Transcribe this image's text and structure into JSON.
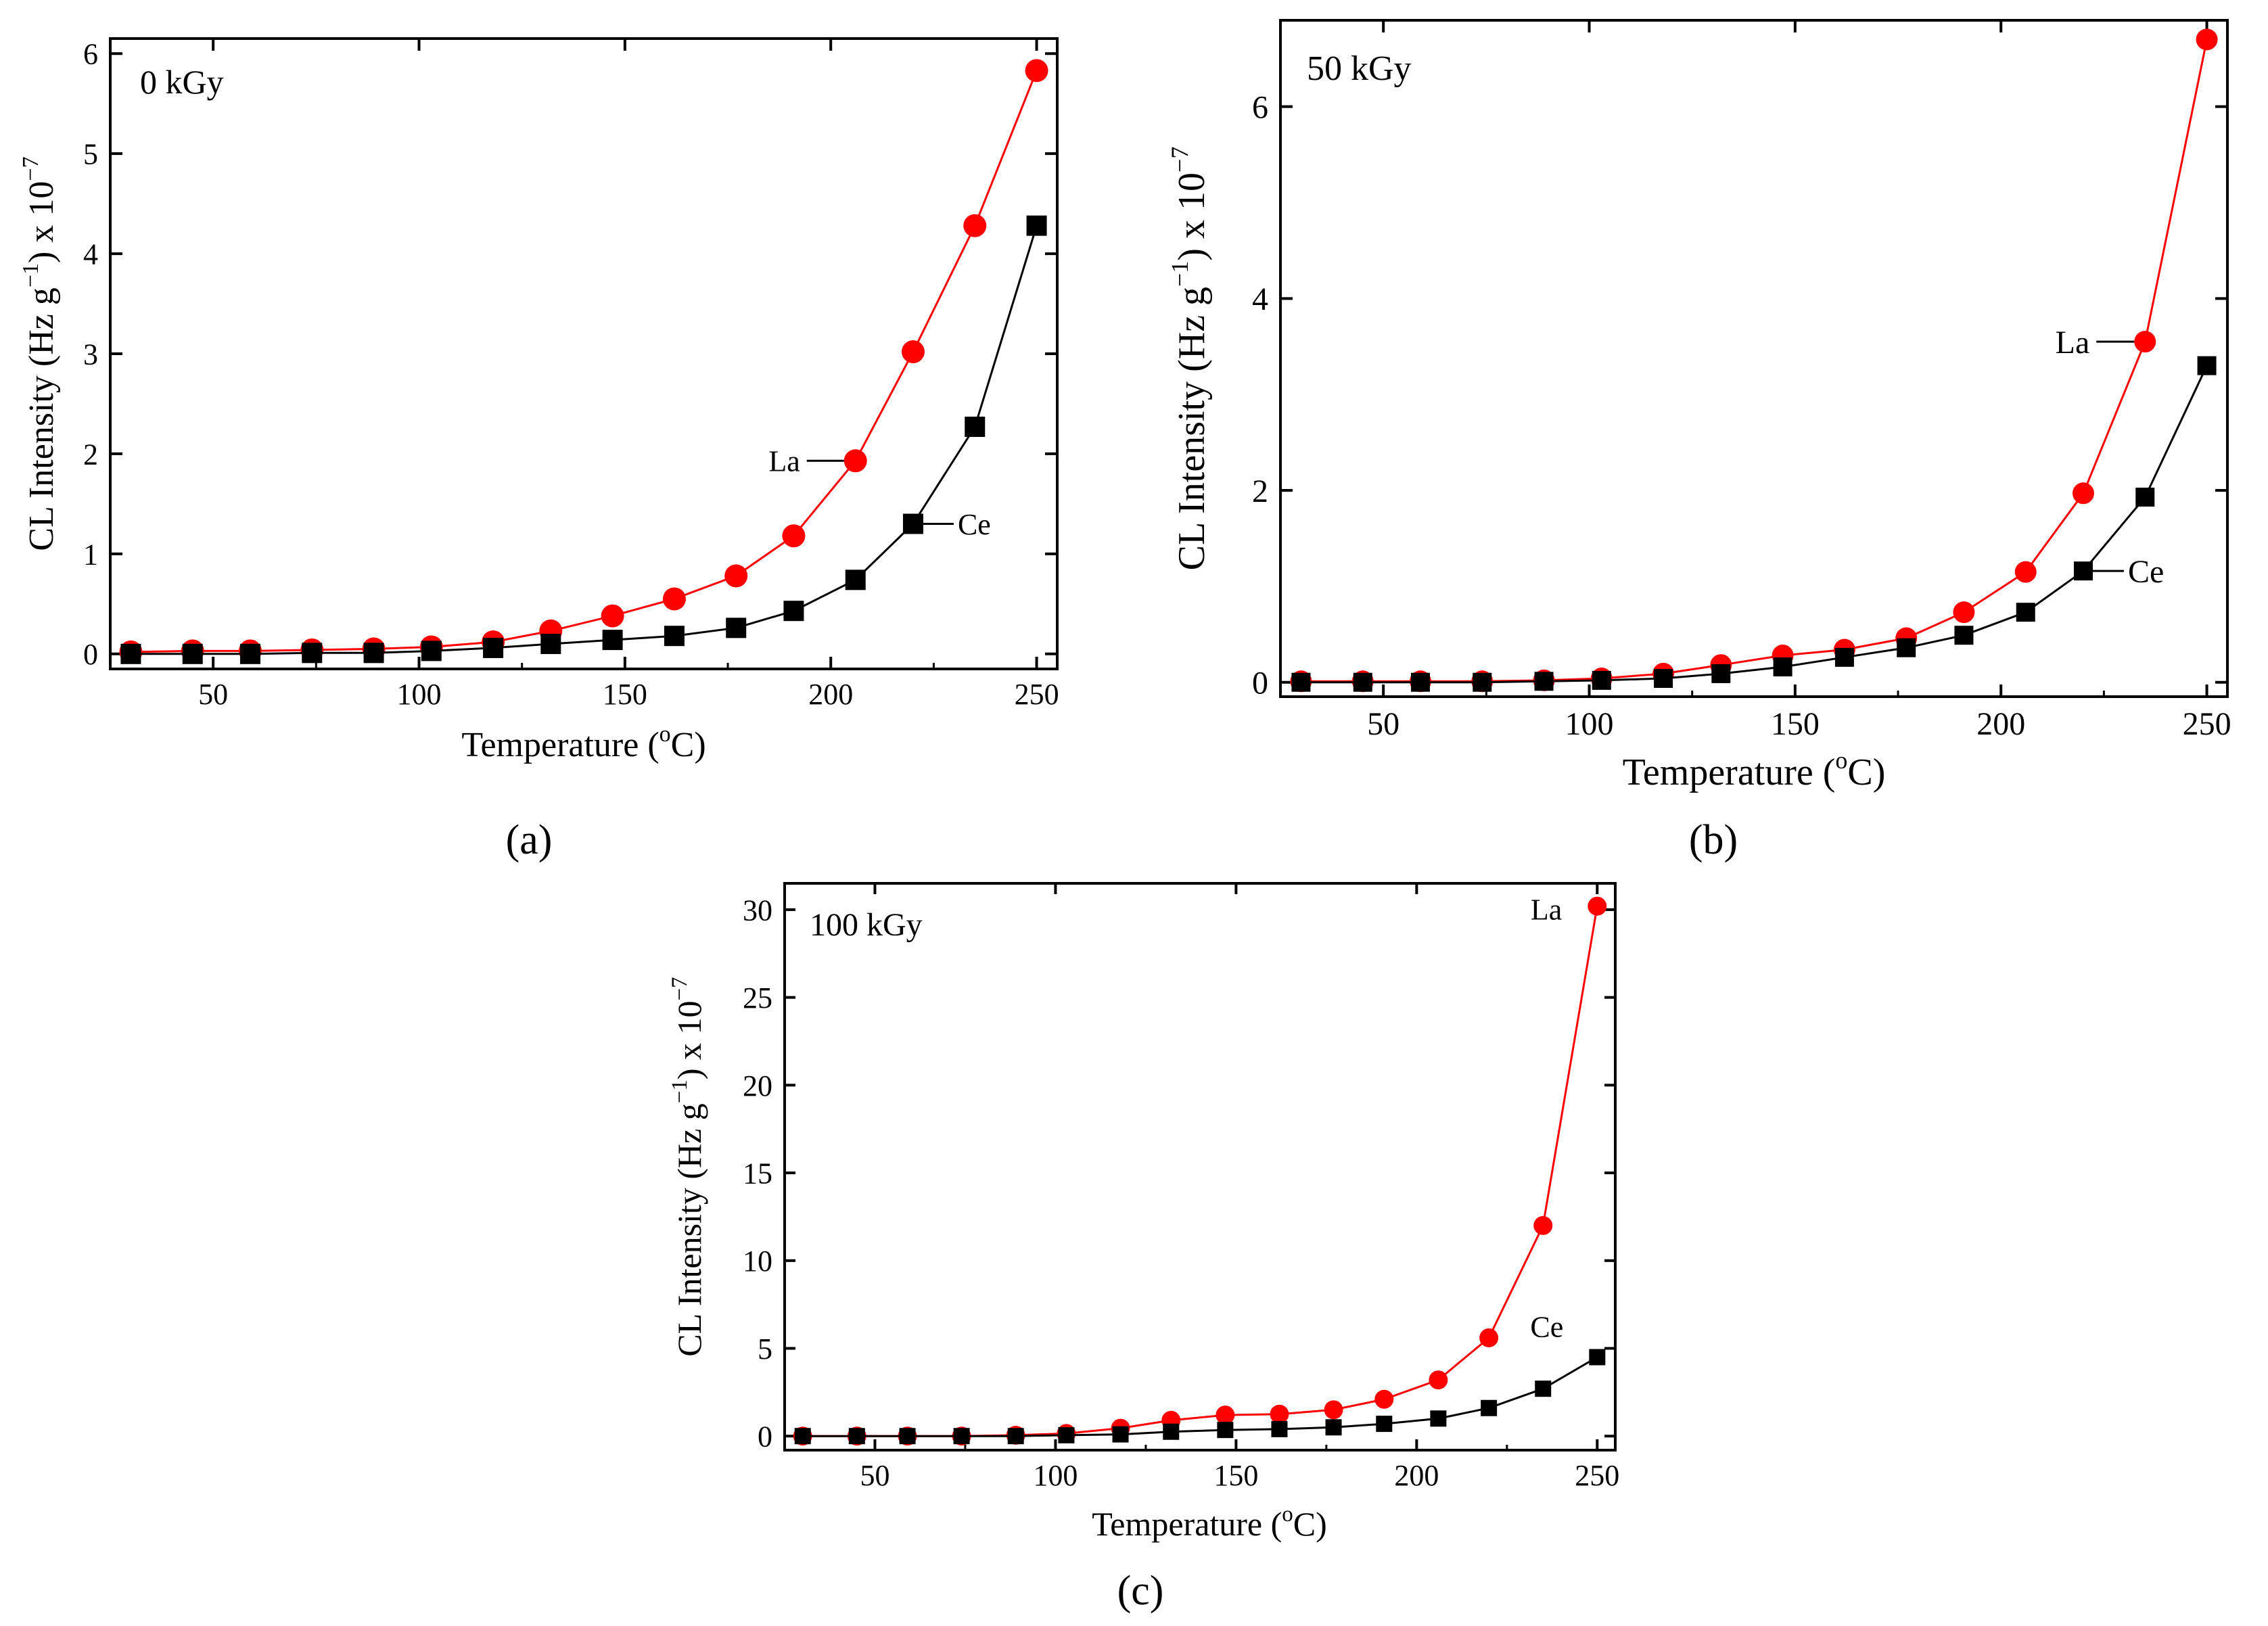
{
  "colors": {
    "la": "#ff0000",
    "ce": "#000000",
    "axis": "#000000"
  },
  "chart_data": [
    {
      "type": "line",
      "panel": "a",
      "panel_label": "(a)",
      "annotation": "0 kGy",
      "xlabel": "Temperature (",
      "xlabel_sup": "o",
      "xlabel_tail": "C)",
      "ylabel_main": "CL Intensity (Hz g",
      "ylabel_sup1": "−1",
      "ylabel_mid": ") x 10",
      "ylabel_sup2": "−7",
      "xlim": [
        25,
        255
      ],
      "ylim": [
        -0.15,
        6.15
      ],
      "xticks": [
        50,
        100,
        150,
        200,
        250
      ],
      "yticks": [
        0,
        1,
        2,
        3,
        4,
        5,
        6
      ],
      "x": [
        30,
        45,
        59,
        74,
        89,
        103,
        118,
        132,
        147,
        162,
        177,
        191,
        206,
        220,
        235,
        250
      ],
      "series": [
        {
          "name": "La",
          "marker": "circle",
          "color": "#ff0000",
          "values": [
            0.02,
            0.03,
            0.03,
            0.04,
            0.05,
            0.07,
            0.12,
            0.23,
            0.38,
            0.55,
            0.78,
            1.18,
            1.93,
            3.02,
            4.28,
            5.83
          ],
          "label_point": 12
        },
        {
          "name": "Ce",
          "marker": "square",
          "color": "#000000",
          "values": [
            0.0,
            0.0,
            0.0,
            0.01,
            0.01,
            0.03,
            0.06,
            0.1,
            0.14,
            0.18,
            0.26,
            0.43,
            0.74,
            1.3,
            2.27,
            4.28
          ],
          "label_point": 13
        }
      ]
    },
    {
      "type": "line",
      "panel": "b",
      "panel_label": "(b)",
      "annotation": "50 kGy",
      "xlabel": "Temperature (",
      "xlabel_sup": "o",
      "xlabel_tail": "C)",
      "ylabel_main": "CL Intensity (Hz g",
      "ylabel_sup1": "−1",
      "ylabel_mid": ") x 10",
      "ylabel_sup2": "−7",
      "xlim": [
        25,
        255
      ],
      "ylim": [
        -0.15,
        6.9
      ],
      "xticks": [
        50,
        100,
        150,
        200,
        250
      ],
      "yticks": [
        0,
        2,
        4,
        6
      ],
      "x": [
        30,
        45,
        59,
        74,
        89,
        103,
        118,
        132,
        147,
        162,
        177,
        191,
        206,
        220,
        235,
        250
      ],
      "series": [
        {
          "name": "La",
          "marker": "circle",
          "color": "#ff0000",
          "values": [
            0.01,
            0.01,
            0.01,
            0.01,
            0.02,
            0.04,
            0.09,
            0.18,
            0.28,
            0.34,
            0.46,
            0.73,
            1.15,
            1.97,
            3.55,
            6.7
          ],
          "label_point": 14
        },
        {
          "name": "Ce",
          "marker": "square",
          "color": "#000000",
          "values": [
            0.0,
            0.0,
            0.0,
            0.0,
            0.01,
            0.02,
            0.04,
            0.09,
            0.16,
            0.26,
            0.36,
            0.49,
            0.73,
            1.16,
            1.93,
            3.3
          ],
          "label_point": 13
        }
      ]
    },
    {
      "type": "line",
      "panel": "c",
      "panel_label": "(c)",
      "annotation": "100 kGy",
      "xlabel": "Temperature (",
      "xlabel_sup": "o",
      "xlabel_tail": "C)",
      "ylabel_main": "CL Intensity (Hz g",
      "ylabel_sup1": "−1",
      "ylabel_mid": ") x 10",
      "ylabel_sup2": "−7",
      "xlim": [
        25,
        255
      ],
      "ylim": [
        -0.8,
        31.5
      ],
      "xticks": [
        50,
        100,
        150,
        200,
        250
      ],
      "yticks": [
        0,
        5,
        10,
        15,
        20,
        25,
        30
      ],
      "x": [
        30,
        45,
        59,
        74,
        89,
        103,
        118,
        132,
        147,
        162,
        177,
        191,
        206,
        220,
        235,
        250
      ],
      "series": [
        {
          "name": "La",
          "marker": "circle",
          "color": "#ff0000",
          "values": [
            0.0,
            0.0,
            0.0,
            0.0,
            0.05,
            0.15,
            0.45,
            0.9,
            1.2,
            1.25,
            1.5,
            2.1,
            3.2,
            5.6,
            12.0,
            30.2
          ],
          "label_point": 15
        },
        {
          "name": "Ce",
          "marker": "square",
          "color": "#000000",
          "values": [
            0.0,
            0.0,
            0.0,
            0.0,
            0.0,
            0.05,
            0.1,
            0.25,
            0.35,
            0.4,
            0.5,
            0.7,
            1.0,
            1.6,
            2.7,
            4.5
          ],
          "label_point": 15
        }
      ]
    }
  ]
}
